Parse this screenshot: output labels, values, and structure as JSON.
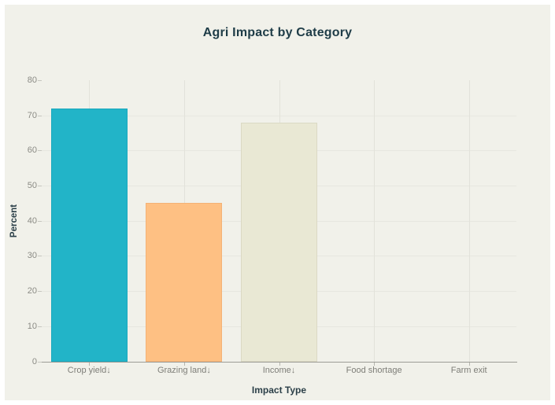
{
  "window": {
    "page_background": "#ffffff",
    "panel_background": "#f1f1ea"
  },
  "chart_data": {
    "type": "bar",
    "title": "Agri Impact by Category",
    "xlabel": "Impact Type",
    "ylabel": "Percent",
    "categories": [
      "Crop yield↓",
      "Grazing land↓",
      "Income↓",
      "Food shortage",
      "Farm exit"
    ],
    "values": [
      72,
      45,
      68,
      0,
      0
    ],
    "bar_colors": [
      "#22b4c8",
      "#fec083",
      "#e9e8d4",
      null,
      null
    ],
    "bar_border_colors": [
      "#1aa9be",
      "#f4b276",
      "#dbd9c4",
      null,
      null
    ],
    "ylim": [
      0,
      80
    ],
    "yticks": [
      0,
      10,
      20,
      30,
      40,
      50,
      60,
      70,
      80
    ],
    "grid": "horizontal lines at each y tick, vertical lines at category centers",
    "legend_position": "none",
    "title_color": "#1e3c47",
    "axis_title_color": "#2b3f48",
    "tick_label_color": "#8b8b85"
  }
}
